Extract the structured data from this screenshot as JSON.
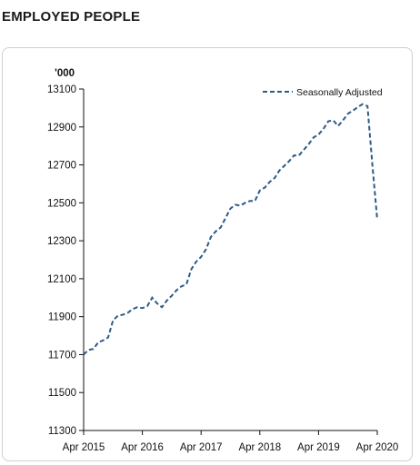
{
  "page": {
    "title": "EMPLOYED PEOPLE"
  },
  "chart_data": {
    "type": "line",
    "title": "",
    "xlabel": "",
    "ylabel": "'000",
    "ylim": [
      11300,
      13100
    ],
    "yticks": [
      11300,
      11500,
      11700,
      11900,
      12100,
      12300,
      12500,
      12700,
      12900,
      13100
    ],
    "xticks": [
      "Apr 2015",
      "Apr 2016",
      "Apr 2017",
      "Apr 2018",
      "Apr 2019",
      "Apr 2020"
    ],
    "grid": false,
    "legend_position": "top-right",
    "series": [
      {
        "name": "Seasonally Adjusted",
        "color": "#2e5a88",
        "line_style": "dashed",
        "x": [
          "2015-04",
          "2015-05",
          "2015-06",
          "2015-07",
          "2015-08",
          "2015-09",
          "2015-10",
          "2015-11",
          "2015-12",
          "2016-01",
          "2016-02",
          "2016-03",
          "2016-04",
          "2016-05",
          "2016-06",
          "2016-07",
          "2016-08",
          "2016-09",
          "2016-10",
          "2016-11",
          "2016-12",
          "2017-01",
          "2017-02",
          "2017-03",
          "2017-04",
          "2017-05",
          "2017-06",
          "2017-07",
          "2017-08",
          "2017-09",
          "2017-10",
          "2017-11",
          "2017-12",
          "2018-01",
          "2018-02",
          "2018-03",
          "2018-04",
          "2018-05",
          "2018-06",
          "2018-07",
          "2018-08",
          "2018-09",
          "2018-10",
          "2018-11",
          "2018-12",
          "2019-01",
          "2019-02",
          "2019-03",
          "2019-04",
          "2019-05",
          "2019-06",
          "2019-07",
          "2019-08",
          "2019-09",
          "2019-10",
          "2019-11",
          "2019-12",
          "2020-01",
          "2020-02",
          "2020-03",
          "2020-04"
        ],
        "values": [
          11700,
          11725,
          11730,
          11765,
          11775,
          11790,
          11880,
          11905,
          11910,
          11920,
          11940,
          11950,
          11945,
          11955,
          12000,
          11970,
          11950,
          11985,
          12010,
          12040,
          12060,
          12070,
          12150,
          12190,
          12215,
          12255,
          12320,
          12350,
          12370,
          12420,
          12470,
          12490,
          12485,
          12500,
          12510,
          12510,
          12565,
          12580,
          12610,
          12630,
          12670,
          12695,
          12720,
          12750,
          12750,
          12780,
          12810,
          12845,
          12860,
          12890,
          12930,
          12935,
          12905,
          12935,
          12970,
          12985,
          13005,
          13020,
          13010,
          12700,
          12410
        ]
      }
    ]
  }
}
